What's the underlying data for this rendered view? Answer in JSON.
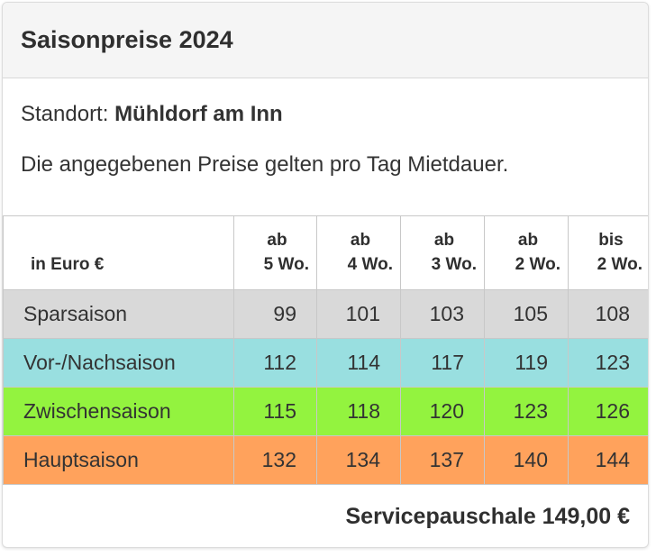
{
  "header": {
    "title": "Saisonpreise 2024"
  },
  "location": {
    "label": "Standort: ",
    "value": "Mühldorf am Inn"
  },
  "note": "Die angegebenen Preise gelten pro Tag Mietdauer.",
  "table": {
    "corner_label": "in Euro €",
    "columns": [
      {
        "line1": "ab",
        "line2": "5 Wo."
      },
      {
        "line1": "ab",
        "line2": "4 Wo."
      },
      {
        "line1": "ab",
        "line2": "3 Wo."
      },
      {
        "line1": "ab",
        "line2": "2 Wo."
      },
      {
        "line1": "bis",
        "line2": "2 Wo."
      }
    ],
    "rows": [
      {
        "label": "Sparsaison",
        "color": "#d9d9d9",
        "values": [
          "99",
          "101",
          "103",
          "105",
          "108"
        ]
      },
      {
        "label": "Vor-/Nachsaison",
        "color": "#99dfe0",
        "values": [
          "112",
          "114",
          "117",
          "119",
          "123"
        ]
      },
      {
        "label": "Zwischensaison",
        "color": "#93f33f",
        "values": [
          "115",
          "118",
          "120",
          "123",
          "126"
        ]
      },
      {
        "label": "Hauptsaison",
        "color": "#ffa25c",
        "values": [
          "132",
          "134",
          "137",
          "140",
          "144"
        ]
      }
    ]
  },
  "footer": {
    "service_fee": "Servicepauschale 149,00 €"
  }
}
